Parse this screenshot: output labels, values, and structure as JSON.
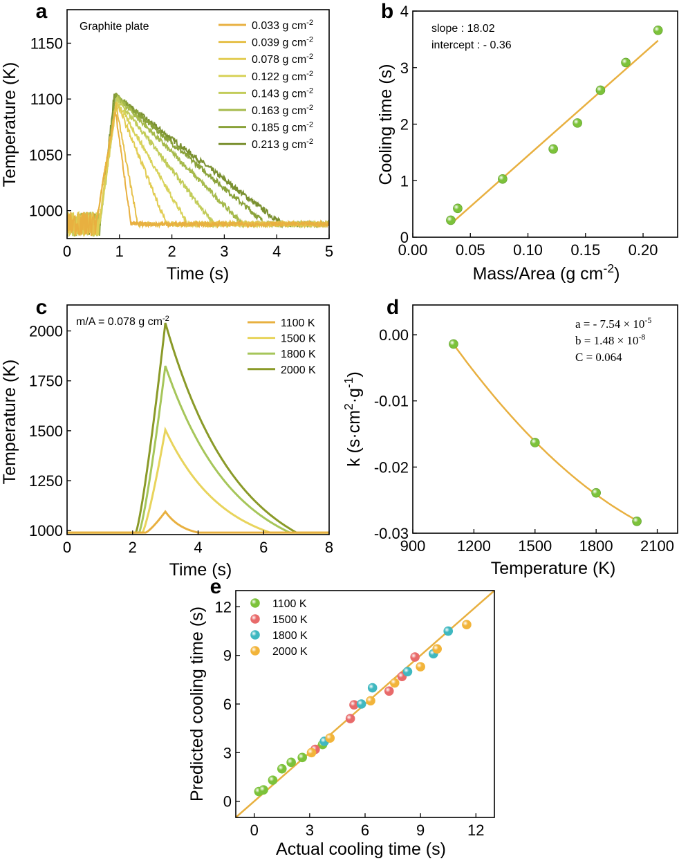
{
  "colors": {
    "fit": "#e8b040",
    "green_marker": "#7cc23a",
    "red_marker": "#e86a6a",
    "cyan_marker": "#3fb8c0",
    "orange_marker": "#f2b43a",
    "a_series": [
      "#e8b040",
      "#e6c04a",
      "#e2cc52",
      "#d8d25a",
      "#c2cc5a",
      "#a6ba4c",
      "#8aa23a",
      "#7a9030"
    ],
    "c_series": [
      "#e8b040",
      "#e8d45c",
      "#a6c65a",
      "#8a9a28"
    ]
  },
  "chart_data": [
    {
      "panel": "a",
      "type": "line",
      "annotation": "Graphite plate",
      "xlabel": "Time (s)",
      "ylabel": "Temperature (K)",
      "xlim": [
        0,
        5
      ],
      "ylim": [
        975,
        1180
      ],
      "xticks": [
        0,
        1,
        2,
        3,
        4,
        5
      ],
      "yticks": [
        1000,
        1050,
        1100,
        1150
      ],
      "legend_position": "top-right",
      "baseline": 988,
      "series": [
        {
          "name_main": "0.033 g cm",
          "name_sup": "-2",
          "start": 0.55,
          "peak_time": 0.92,
          "peak": 1090,
          "end_time": 1.22
        },
        {
          "name_main": "0.039 g cm",
          "name_sup": "-2",
          "start": 0.55,
          "peak_time": 0.93,
          "peak": 1095,
          "end_time": 1.35
        },
        {
          "name_main": "0.078 g cm",
          "name_sup": "-2",
          "start": 0.6,
          "peak_time": 0.95,
          "peak": 1097,
          "end_time": 1.9
        },
        {
          "name_main": "0.122 g cm",
          "name_sup": "-2",
          "start": 0.62,
          "peak_time": 0.95,
          "peak": 1098,
          "end_time": 2.3
        },
        {
          "name_main": "0.143 g cm",
          "name_sup": "-2",
          "start": 0.62,
          "peak_time": 0.95,
          "peak": 1100,
          "end_time": 2.8
        },
        {
          "name_main": "0.163 g cm",
          "name_sup": "-2",
          "start": 0.63,
          "peak_time": 0.95,
          "peak": 1102,
          "end_time": 3.35
        },
        {
          "name_main": "0.185 g cm",
          "name_sup": "-2",
          "start": 0.63,
          "peak_time": 0.92,
          "peak": 1104,
          "end_time": 3.8
        },
        {
          "name_main": "0.213 g cm",
          "name_sup": "-2",
          "start": 0.63,
          "peak_time": 0.9,
          "peak": 1104,
          "end_time": 4.1
        }
      ]
    },
    {
      "panel": "b",
      "type": "scatter",
      "annotation_lines": [
        "slope : 18.02",
        "intercept : - 0.36"
      ],
      "xlabel_main": "Mass/Area  (g cm",
      "xlabel_sup": "-2",
      "xlabel_end": ")",
      "ylabel": "Cooling time (s)",
      "xlim": [
        0,
        0.23
      ],
      "ylim": [
        0,
        4
      ],
      "xticks": [
        0.0,
        0.05,
        0.1,
        0.15,
        0.2
      ],
      "xtick_labels": [
        "0.00",
        "0.05",
        "0.10",
        "0.15",
        "0.20"
      ],
      "yticks": [
        0,
        1,
        2,
        3,
        4
      ],
      "points": [
        {
          "x": 0.033,
          "y": 0.3
        },
        {
          "x": 0.039,
          "y": 0.51
        },
        {
          "x": 0.078,
          "y": 1.03
        },
        {
          "x": 0.122,
          "y": 1.56
        },
        {
          "x": 0.143,
          "y": 2.02
        },
        {
          "x": 0.163,
          "y": 2.6
        },
        {
          "x": 0.185,
          "y": 3.09
        },
        {
          "x": 0.213,
          "y": 3.66
        }
      ],
      "fit": {
        "slope": 18.02,
        "intercept": -0.36,
        "x_range": [
          0.033,
          0.213
        ]
      }
    },
    {
      "panel": "c",
      "type": "line",
      "annotation_main": "m/A = 0.078 g cm",
      "annotation_sup": "-2",
      "xlabel": "Time (s)",
      "ylabel": "Temperature (K)",
      "xlim": [
        0,
        8
      ],
      "ylim": [
        980,
        2130
      ],
      "xticks": [
        0,
        2,
        4,
        6,
        8
      ],
      "yticks": [
        1000,
        1250,
        1500,
        1750,
        2000
      ],
      "legend_position": "top-right",
      "baseline": 990,
      "series": [
        {
          "name": "1100 K",
          "start": 2.4,
          "peak_time": 3.0,
          "peak": 1095,
          "end_time": 4.0
        },
        {
          "name": "1500 K",
          "start": 2.3,
          "peak_time": 3.0,
          "peak": 1505,
          "end_time": 6.2
        },
        {
          "name": "1800 K",
          "start": 2.2,
          "peak_time": 3.0,
          "peak": 1825,
          "end_time": 6.8
        },
        {
          "name": "2000 K",
          "start": 2.1,
          "peak_time": 3.0,
          "peak": 2040,
          "end_time": 7.0
        }
      ]
    },
    {
      "panel": "d",
      "type": "scatter",
      "annotation_lines": [
        {
          "main": "a = - 7.54 × 10",
          "sup": "-5"
        },
        {
          "main": "b = 1.48 × 10",
          "sup": "-8"
        },
        {
          "main": "C = 0.064",
          "sup": ""
        }
      ],
      "xlabel": "Temperature (K)",
      "ylabel_main": "k (s·cm",
      "ylabel_sup1": "2",
      "ylabel_mid": "·g",
      "ylabel_sup2": "-1",
      "ylabel_end": ")",
      "xlim": [
        900,
        2200
      ],
      "ylim": [
        -0.03,
        0.0045
      ],
      "xticks": [
        900,
        1200,
        1500,
        1800,
        2100
      ],
      "yticks": [
        0.0,
        -0.01,
        -0.02,
        -0.03
      ],
      "ytick_labels": [
        "0.00",
        "-0.01",
        "-0.02",
        "-0.03"
      ],
      "points": [
        {
          "x": 1100,
          "y": -0.0014
        },
        {
          "x": 1500,
          "y": -0.0163
        },
        {
          "x": 1800,
          "y": -0.0239
        },
        {
          "x": 2000,
          "y": -0.0282
        }
      ],
      "fit": {
        "a": -7.54e-05,
        "b": 1.48e-08,
        "c": 0.064,
        "x_range": [
          1100,
          2000
        ]
      }
    },
    {
      "panel": "e",
      "type": "scatter",
      "xlabel": "Actual cooling time (s)",
      "ylabel": "Predicted cooling time (s)",
      "xlim": [
        -1,
        13
      ],
      "ylim": [
        -1,
        13
      ],
      "xticks": [
        0,
        3,
        6,
        9,
        12
      ],
      "yticks": [
        0,
        3,
        6,
        9,
        12
      ],
      "legend_position": "top-left",
      "series": [
        {
          "name": "1100 K",
          "color_key": "green_marker",
          "points": [
            [
              0.25,
              0.6
            ],
            [
              0.5,
              0.7
            ],
            [
              1.0,
              1.3
            ],
            [
              1.5,
              2.0
            ],
            [
              2.0,
              2.4
            ],
            [
              2.6,
              2.7
            ],
            [
              3.7,
              3.5
            ]
          ]
        },
        {
          "name": "1500 K",
          "color_key": "red_marker",
          "points": [
            [
              3.3,
              3.2
            ],
            [
              5.2,
              5.1
            ],
            [
              5.4,
              5.95
            ],
            [
              7.3,
              6.8
            ],
            [
              8.0,
              7.7
            ],
            [
              8.7,
              8.9
            ]
          ]
        },
        {
          "name": "1800 K",
          "color_key": "cyan_marker",
          "points": [
            [
              3.8,
              3.7
            ],
            [
              5.8,
              6.0
            ],
            [
              6.4,
              7.0
            ],
            [
              8.3,
              8.0
            ],
            [
              9.7,
              9.1
            ],
            [
              10.5,
              10.5
            ]
          ]
        },
        {
          "name": "2000 K",
          "color_key": "orange_marker",
          "points": [
            [
              3.1,
              3.0
            ],
            [
              4.1,
              3.9
            ],
            [
              6.3,
              6.2
            ],
            [
              7.6,
              7.3
            ],
            [
              9.0,
              8.3
            ],
            [
              9.9,
              9.4
            ],
            [
              11.5,
              10.9
            ]
          ]
        }
      ]
    }
  ]
}
